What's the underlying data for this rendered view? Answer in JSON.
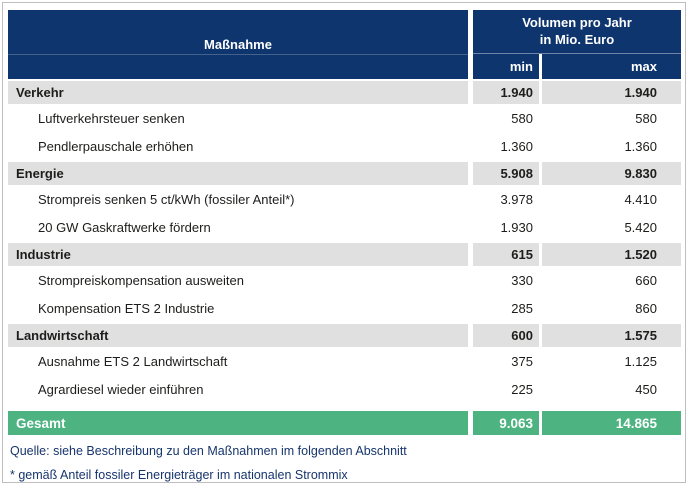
{
  "table": {
    "header": {
      "measure_col": "Maßnahme",
      "volume_col_line1": "Volumen pro Jahr",
      "volume_col_line2": "in Mio. Euro",
      "min_label": "min",
      "max_label": "max"
    },
    "sections": [
      {
        "label": "Verkehr",
        "min": "1.940",
        "max": "1.940",
        "items": [
          {
            "label": "Luftverkehrsteuer senken",
            "min": "580",
            "max": "580"
          },
          {
            "label": "Pendlerpauschale erhöhen",
            "min": "1.360",
            "max": "1.360"
          }
        ]
      },
      {
        "label": "Energie",
        "min": "5.908",
        "max": "9.830",
        "items": [
          {
            "label": "Strompreis senken 5 ct/kWh (fossiler Anteil*)",
            "min": "3.978",
            "max": "4.410"
          },
          {
            "label": "20 GW Gaskraftwerke fördern",
            "min": "1.930",
            "max": "5.420"
          }
        ]
      },
      {
        "label": "Industrie",
        "min": "615",
        "max": "1.520",
        "items": [
          {
            "label": "Strompreiskompensation ausweiten",
            "min": "330",
            "max": "660"
          },
          {
            "label": "Kompensation ETS 2 Industrie",
            "min": "285",
            "max": "860"
          }
        ]
      },
      {
        "label": "Landwirtschaft",
        "min": "600",
        "max": "1.575",
        "items": [
          {
            "label": "Ausnahme ETS 2 Landwirtschaft",
            "min": "375",
            "max": "1.125"
          },
          {
            "label": "Agrardiesel wieder einführen",
            "min": "225",
            "max": "450"
          }
        ]
      }
    ],
    "total": {
      "label": "Gesamt",
      "min": "9.063",
      "max": "14.865"
    }
  },
  "footer": {
    "source": "Quelle:  siehe Beschreibung zu den Maßnahmen im folgenden Abschnitt",
    "footnote": "* gemäß Anteil fossiler Energieträger im nationalen Strommix"
  },
  "colors": {
    "header_navy": "#0e356d",
    "section_gray": "#e0e0e0",
    "total_green": "#4db381",
    "footer_text": "#17356d",
    "frame_border": "#bfbfbf"
  },
  "chart_data": {
    "type": "table",
    "title": "Volumen pro Jahr in Mio. Euro",
    "columns": [
      "Maßnahme",
      "min",
      "max"
    ],
    "unit": "Mio. Euro pro Jahr",
    "rows": [
      [
        "Verkehr",
        1940,
        1940
      ],
      [
        "Luftverkehrsteuer senken",
        580,
        580
      ],
      [
        "Pendlerpauschale erhöhen",
        1360,
        1360
      ],
      [
        "Energie",
        5908,
        9830
      ],
      [
        "Strompreis senken 5 ct/kWh (fossiler Anteil*)",
        3978,
        4410
      ],
      [
        "20 GW Gaskraftwerke fördern",
        1930,
        5420
      ],
      [
        "Industrie",
        615,
        1520
      ],
      [
        "Strompreiskompensation ausweiten",
        330,
        660
      ],
      [
        "Kompensation ETS 2 Industrie",
        285,
        860
      ],
      [
        "Landwirtschaft",
        600,
        1575
      ],
      [
        "Ausnahme ETS 2 Landwirtschaft",
        375,
        1125
      ],
      [
        "Agrardiesel wieder einführen",
        225,
        450
      ],
      [
        "Gesamt",
        9063,
        14865
      ]
    ]
  }
}
